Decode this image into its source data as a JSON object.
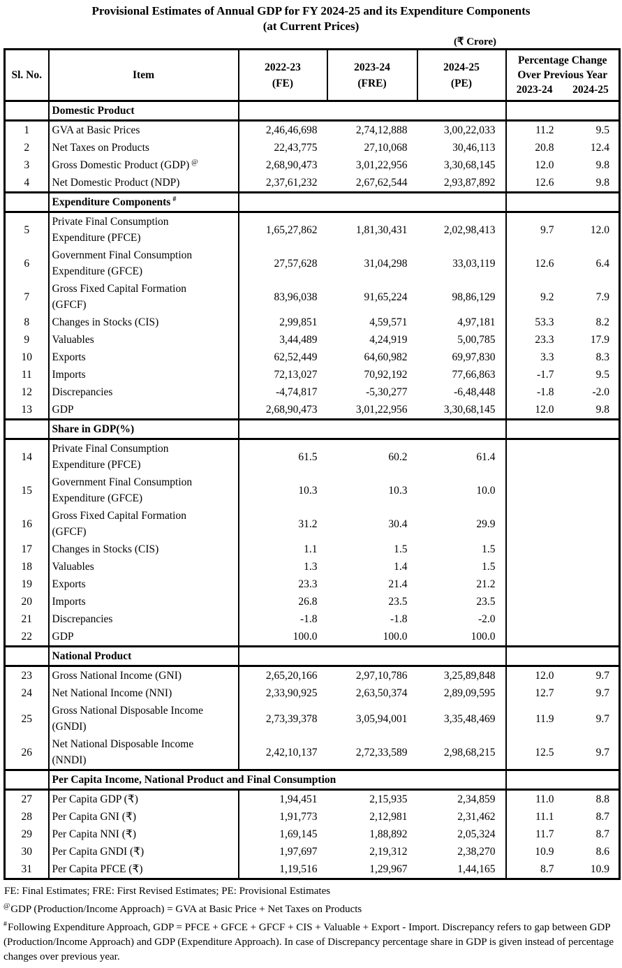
{
  "document": {
    "title_line1": "Provisional Estimates of Annual GDP for FY 2024-25 and its Expenditure Components",
    "title_line2": "(at Current Prices)",
    "unit_label": "(₹ Crore)"
  },
  "header": {
    "col_slno": "Sl. No.",
    "col_item": "Item",
    "col_y1": "2022-23\n(FE)",
    "col_y2": "2023-24\n(FRE)",
    "col_y3": "2024-25\n(PE)",
    "pct_line1": "Percentage Change",
    "pct_line2": "Over Previous Year",
    "pct_year1": "2023-24",
    "pct_year2": "2024-25"
  },
  "table": {
    "sections": [
      {
        "title": "Domestic Product",
        "title_sup": "",
        "span_title": false,
        "rows": [
          {
            "no": "1",
            "item": "GVA at Basic Prices",
            "sup": "",
            "v1": "2,46,46,698",
            "v2": "2,74,12,888",
            "v3": "3,00,22,033",
            "p1": "11.2",
            "p2": "9.5"
          },
          {
            "no": "2",
            "item": "Net Taxes on Products",
            "sup": "",
            "v1": "22,43,775",
            "v2": "27,10,068",
            "v3": "30,46,113",
            "p1": "20.8",
            "p2": "12.4"
          },
          {
            "no": "3",
            "item": "Gross Domestic Product (GDP)",
            "sup": "@",
            "v1": "2,68,90,473",
            "v2": "3,01,22,956",
            "v3": "3,30,68,145",
            "p1": "12.0",
            "p2": "9.8"
          },
          {
            "no": "4",
            "item": "Net Domestic Product (NDP)",
            "sup": "",
            "v1": "2,37,61,232",
            "v2": "2,67,62,544",
            "v3": "2,93,87,892",
            "p1": "12.6",
            "p2": "9.8"
          }
        ]
      },
      {
        "title": "Expenditure Components",
        "title_sup": "#",
        "span_title": false,
        "rows": [
          {
            "no": "5",
            "item": "Private Final Consumption\nExpenditure (PFCE)",
            "sup": "",
            "v1": "1,65,27,862",
            "v2": "1,81,30,431",
            "v3": "2,02,98,413",
            "p1": "9.7",
            "p2": "12.0"
          },
          {
            "no": "6",
            "item": "Government Final Consumption\nExpenditure (GFCE)",
            "sup": "",
            "v1": "27,57,628",
            "v2": "31,04,298",
            "v3": "33,03,119",
            "p1": "12.6",
            "p2": "6.4"
          },
          {
            "no": "7",
            "item": "Gross Fixed Capital Formation\n(GFCF)",
            "sup": "",
            "v1": "83,96,038",
            "v2": "91,65,224",
            "v3": "98,86,129",
            "p1": "9.2",
            "p2": "7.9"
          },
          {
            "no": "8",
            "item": "Changes in Stocks (CIS)",
            "sup": "",
            "v1": "2,99,851",
            "v2": "4,59,571",
            "v3": "4,97,181",
            "p1": "53.3",
            "p2": "8.2"
          },
          {
            "no": "9",
            "item": "Valuables",
            "sup": "",
            "v1": "3,44,489",
            "v2": "4,24,919",
            "v3": "5,00,785",
            "p1": "23.3",
            "p2": "17.9"
          },
          {
            "no": "10",
            "item": "Exports",
            "sup": "",
            "v1": "62,52,449",
            "v2": "64,60,982",
            "v3": "69,97,830",
            "p1": "3.3",
            "p2": "8.3"
          },
          {
            "no": "11",
            "item": "Imports",
            "sup": "",
            "v1": "72,13,027",
            "v2": "70,92,192",
            "v3": "77,66,863",
            "p1": "-1.7",
            "p2": "9.5"
          },
          {
            "no": "12",
            "item": "Discrepancies",
            "sup": "",
            "v1": "-4,74,817",
            "v2": "-5,30,277",
            "v3": "-6,48,448",
            "p1": "-1.8",
            "p2": "-2.0"
          },
          {
            "no": "13",
            "item": "GDP",
            "sup": "",
            "v1": "2,68,90,473",
            "v2": "3,01,22,956",
            "v3": "3,30,68,145",
            "p1": "12.0",
            "p2": "9.8"
          }
        ]
      },
      {
        "title": "Share in GDP(%)",
        "title_sup": "",
        "span_title": false,
        "rows": [
          {
            "no": "14",
            "item": "Private Final Consumption\nExpenditure (PFCE)",
            "sup": "",
            "v1": "61.5",
            "v2": "60.2",
            "v3": "61.4",
            "p1": "",
            "p2": ""
          },
          {
            "no": "15",
            "item": "Government Final Consumption\nExpenditure (GFCE)",
            "sup": "",
            "v1": "10.3",
            "v2": "10.3",
            "v3": "10.0",
            "p1": "",
            "p2": ""
          },
          {
            "no": "16",
            "item": "Gross Fixed Capital Formation\n(GFCF)",
            "sup": "",
            "v1": "31.2",
            "v2": "30.4",
            "v3": "29.9",
            "p1": "",
            "p2": ""
          },
          {
            "no": "17",
            "item": "Changes in Stocks (CIS)",
            "sup": "",
            "v1": "1.1",
            "v2": "1.5",
            "v3": "1.5",
            "p1": "",
            "p2": ""
          },
          {
            "no": "18",
            "item": "Valuables",
            "sup": "",
            "v1": "1.3",
            "v2": "1.4",
            "v3": "1.5",
            "p1": "",
            "p2": ""
          },
          {
            "no": "19",
            "item": "Exports",
            "sup": "",
            "v1": "23.3",
            "v2": "21.4",
            "v3": "21.2",
            "p1": "",
            "p2": ""
          },
          {
            "no": "20",
            "item": "Imports",
            "sup": "",
            "v1": "26.8",
            "v2": "23.5",
            "v3": "23.5",
            "p1": "",
            "p2": ""
          },
          {
            "no": "21",
            "item": "Discrepancies",
            "sup": "",
            "v1": "-1.8",
            "v2": "-1.8",
            "v3": "-2.0",
            "p1": "",
            "p2": ""
          },
          {
            "no": "22",
            "item": "GDP",
            "sup": "",
            "v1": "100.0",
            "v2": "100.0",
            "v3": "100.0",
            "p1": "",
            "p2": ""
          }
        ]
      },
      {
        "title": "National Product",
        "title_sup": "",
        "span_title": false,
        "rows": [
          {
            "no": "23",
            "item": "Gross National Income (GNI)",
            "sup": "",
            "v1": "2,65,20,166",
            "v2": "2,97,10,786",
            "v3": "3,25,89,848",
            "p1": "12.0",
            "p2": "9.7"
          },
          {
            "no": "24",
            "item": "Net National Income (NNI)",
            "sup": "",
            "v1": "2,33,90,925",
            "v2": "2,63,50,374",
            "v3": "2,89,09,595",
            "p1": "12.7",
            "p2": "9.7"
          },
          {
            "no": "25",
            "item": "Gross National Disposable Income\n(GNDI)",
            "sup": "",
            "v1": "2,73,39,378",
            "v2": "3,05,94,001",
            "v3": "3,35,48,469",
            "p1": "11.9",
            "p2": "9.7"
          },
          {
            "no": "26",
            "item": "Net National Disposable Income\n(NNDI)",
            "sup": "",
            "v1": "2,42,10,137",
            "v2": "2,72,33,589",
            "v3": "2,98,68,215",
            "p1": "12.5",
            "p2": "9.7"
          }
        ]
      },
      {
        "title": "Per Capita Income, National Product and Final Consumption",
        "title_sup": "",
        "span_title": true,
        "rows": [
          {
            "no": "27",
            "item": "Per Capita GDP (₹)",
            "sup": "",
            "v1": "1,94,451",
            "v2": "2,15,935",
            "v3": "2,34,859",
            "p1": "11.0",
            "p2": "8.8"
          },
          {
            "no": "28",
            "item": "Per Capita GNI (₹)",
            "sup": "",
            "v1": "1,91,773",
            "v2": "2,12,981",
            "v3": "2,31,462",
            "p1": "11.1",
            "p2": "8.7"
          },
          {
            "no": "29",
            "item": "Per Capita NNI (₹)",
            "sup": "",
            "v1": "1,69,145",
            "v2": "1,88,892",
            "v3": "2,05,324",
            "p1": "11.7",
            "p2": "8.7"
          },
          {
            "no": "30",
            "item": "Per Capita GNDI (₹)",
            "sup": "",
            "v1": "1,97,697",
            "v2": "2,19,312",
            "v3": "2,38,270",
            "p1": "10.9",
            "p2": "8.6"
          },
          {
            "no": "31",
            "item": "Per Capita PFCE (₹)",
            "sup": "",
            "v1": "1,19,516",
            "v2": "1,29,967",
            "v3": "1,44,165",
            "p1": "8.7",
            "p2": "10.9"
          }
        ]
      }
    ]
  },
  "footnotes": [
    {
      "sup": "",
      "text": "FE: Final Estimates; FRE: First Revised Estimates; PE: Provisional Estimates"
    },
    {
      "sup": "@",
      "text": "GDP (Production/Income Approach) = GVA at Basic Price + Net Taxes on Products"
    },
    {
      "sup": "#",
      "text": "Following Expenditure Approach, GDP = PFCE + GFCE + GFCF + CIS + Valuable + Export - Import. Discrepancy refers to gap between GDP (Production/Income Approach) and GDP (Expenditure Approach).  In case of Discrepancy percentage share in GDP is given instead of percentage changes over previous year."
    }
  ]
}
